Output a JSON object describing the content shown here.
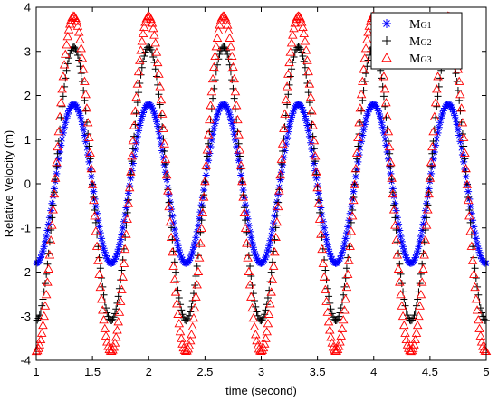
{
  "chart_data": {
    "type": "scatter",
    "xlabel": "time (second)",
    "ylabel": "Relative Velocity (m)",
    "xlim": [
      1,
      5
    ],
    "ylim": [
      -4,
      4
    ],
    "xticks": [
      "1",
      "1.5",
      "2",
      "2.5",
      "3",
      "3.5",
      "4",
      "4.5",
      "5"
    ],
    "yticks": [
      "-4",
      "-3",
      "-2",
      "-1",
      "0",
      "1",
      "2",
      "3",
      "4"
    ],
    "grid": false,
    "legend_position": "top-right",
    "x": {
      "start": 1.0,
      "end": 5.0,
      "step": 0.01
    },
    "series": [
      {
        "name": "MG1",
        "main": "M",
        "sub": "G1",
        "marker": "*",
        "color": "#0000ff",
        "amplitude": 1.8,
        "period": 0.666,
        "phase_ref_x": 1.0,
        "phase_ref_value": -1.8
      },
      {
        "name": "MG2",
        "main": "M",
        "sub": "G2",
        "marker": "+",
        "color": "#000000",
        "amplitude": 3.1,
        "period": 0.666,
        "phase_ref_x": 1.0,
        "phase_ref_value": -3.1
      },
      {
        "name": "MG3",
        "main": "M",
        "sub": "G3",
        "marker": "triangle",
        "color": "#ff0000",
        "amplitude": 3.8,
        "period": 0.666,
        "phase_ref_x": 1.0,
        "phase_ref_value": -3.8
      }
    ]
  }
}
